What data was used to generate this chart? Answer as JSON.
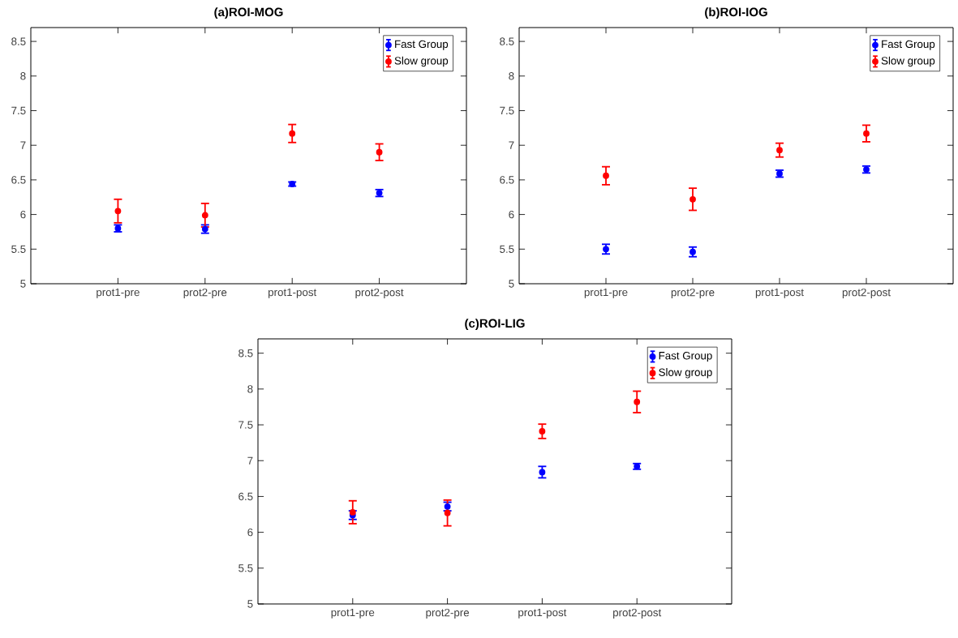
{
  "chart_data": [
    {
      "type": "scatter",
      "title": "(a)ROI-MOG",
      "categories": [
        "prot1-pre",
        "prot2-pre",
        "prot1-post",
        "prot2-post"
      ],
      "ylim": [
        5,
        8.7
      ],
      "yticks": [
        5,
        5.5,
        6,
        6.5,
        7,
        7.5,
        8,
        8.5
      ],
      "marker": "circle",
      "legend": "top right",
      "series": [
        {
          "name": "Fast Group",
          "color": "#0000ff",
          "values": [
            5.8,
            5.79,
            6.44,
            6.31
          ],
          "errors": [
            0.05,
            0.06,
            0.03,
            0.05
          ]
        },
        {
          "name": "Slow group",
          "color": "#ff0000",
          "values": [
            6.05,
            5.99,
            7.17,
            6.9
          ],
          "errors": [
            0.17,
            0.17,
            0.13,
            0.12
          ]
        }
      ]
    },
    {
      "type": "scatter",
      "title": "(b)ROI-IOG",
      "categories": [
        "prot1-pre",
        "prot2-pre",
        "prot1-post",
        "prot2-post"
      ],
      "ylim": [
        5,
        8.7
      ],
      "yticks": [
        5,
        5.5,
        6,
        6.5,
        7,
        7.5,
        8,
        8.5
      ],
      "marker": "circle",
      "legend": "top right",
      "series": [
        {
          "name": "Fast Group",
          "color": "#0000ff",
          "values": [
            5.5,
            5.46,
            6.59,
            6.65
          ],
          "errors": [
            0.07,
            0.07,
            0.05,
            0.05
          ]
        },
        {
          "name": "Slow group",
          "color": "#ff0000",
          "values": [
            6.56,
            6.22,
            6.93,
            7.17
          ],
          "errors": [
            0.13,
            0.16,
            0.1,
            0.12
          ]
        }
      ]
    },
    {
      "type": "scatter",
      "title": "(c)ROI-LIG",
      "categories": [
        "prot1-pre",
        "prot2-pre",
        "prot1-post",
        "prot2-post"
      ],
      "ylim": [
        5,
        8.7
      ],
      "yticks": [
        5,
        5.5,
        6,
        6.5,
        7,
        7.5,
        8,
        8.5
      ],
      "marker": "circle",
      "legend": "top right",
      "series": [
        {
          "name": "Fast Group",
          "color": "#0000ff",
          "values": [
            6.24,
            6.36,
            6.84,
            6.92
          ],
          "errors": [
            0.06,
            0.06,
            0.08,
            0.04
          ]
        },
        {
          "name": "Slow group",
          "color": "#ff0000",
          "values": [
            6.28,
            6.27,
            7.41,
            7.82
          ],
          "errors": [
            0.16,
            0.18,
            0.1,
            0.15
          ]
        }
      ]
    }
  ]
}
